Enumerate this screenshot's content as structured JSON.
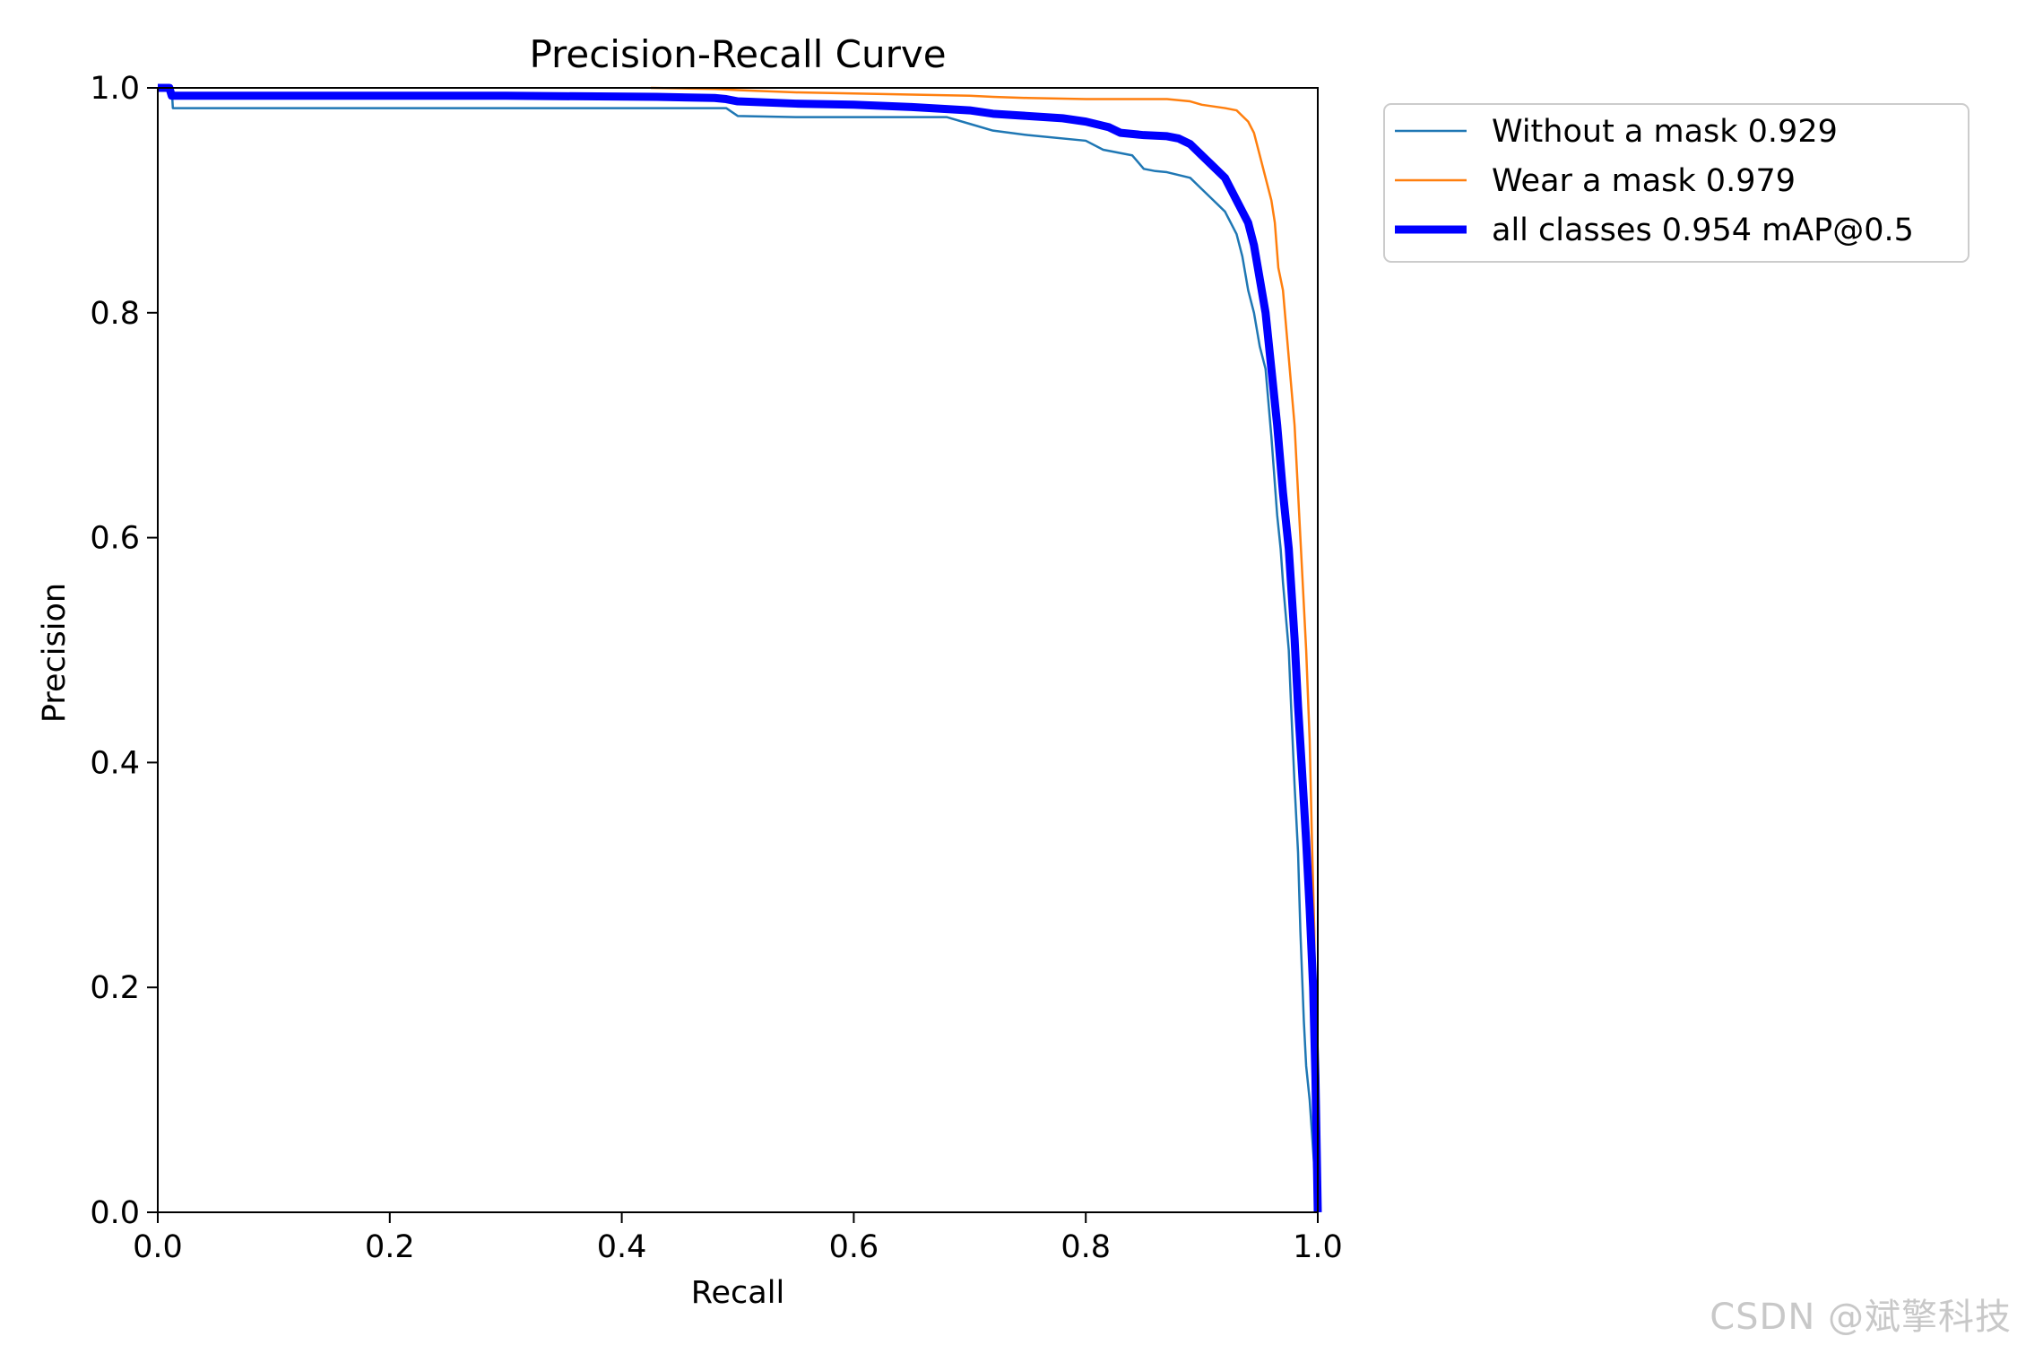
{
  "watermark": "CSDN @斌擎科技",
  "chart_data": {
    "type": "line",
    "title": "Precision-Recall Curve",
    "xlabel": "Recall",
    "ylabel": "Precision",
    "xlim": [
      0,
      1
    ],
    "ylim": [
      0,
      1
    ],
    "xticks": [
      0.0,
      0.2,
      0.4,
      0.6,
      0.8,
      1.0
    ],
    "yticks": [
      0.0,
      0.2,
      0.4,
      0.6,
      0.8,
      1.0
    ],
    "xtick_labels": [
      "0.0",
      "0.2",
      "0.4",
      "0.6",
      "0.8",
      "1.0"
    ],
    "ytick_labels": [
      "0.0",
      "0.2",
      "0.4",
      "0.6",
      "0.8",
      "1.0"
    ],
    "grid": false,
    "legend_position": "outside-top-right",
    "series": [
      {
        "name": "Without a mask 0.929",
        "color": "#1f77b4",
        "style": "thin",
        "x": [
          0.0,
          0.012,
          0.013,
          0.49,
          0.5,
          0.55,
          0.6,
          0.68,
          0.7,
          0.72,
          0.75,
          0.8,
          0.815,
          0.84,
          0.85,
          0.86,
          0.87,
          0.89,
          0.9,
          0.91,
          0.92,
          0.93,
          0.935,
          0.94,
          0.945,
          0.95,
          0.955,
          0.96,
          0.965,
          0.968,
          0.97,
          0.975,
          0.977,
          0.98,
          0.983,
          0.985,
          0.988,
          0.99,
          0.993,
          0.995,
          0.997,
          1.0
        ],
        "y": [
          1.0,
          1.0,
          0.982,
          0.982,
          0.975,
          0.974,
          0.974,
          0.974,
          0.968,
          0.962,
          0.958,
          0.953,
          0.945,
          0.94,
          0.928,
          0.926,
          0.925,
          0.92,
          0.91,
          0.9,
          0.89,
          0.87,
          0.85,
          0.82,
          0.8,
          0.77,
          0.75,
          0.69,
          0.62,
          0.59,
          0.56,
          0.5,
          0.45,
          0.38,
          0.32,
          0.25,
          0.17,
          0.13,
          0.1,
          0.07,
          0.04,
          0.0
        ]
      },
      {
        "name": "Wear a mask 0.979",
        "color": "#ff7f0e",
        "style": "thin",
        "x": [
          0.425,
          0.48,
          0.5,
          0.55,
          0.6,
          0.65,
          0.7,
          0.72,
          0.75,
          0.8,
          0.85,
          0.87,
          0.89,
          0.9,
          0.92,
          0.93,
          0.94,
          0.945,
          0.95,
          0.955,
          0.96,
          0.963,
          0.966,
          0.97,
          0.975,
          0.98,
          0.985,
          0.99,
          0.993,
          0.995,
          0.997,
          0.998,
          0.999,
          1.0
        ],
        "y": [
          1.0,
          0.999,
          0.998,
          0.996,
          0.995,
          0.994,
          0.993,
          0.992,
          0.991,
          0.99,
          0.99,
          0.99,
          0.988,
          0.985,
          0.982,
          0.98,
          0.97,
          0.96,
          0.94,
          0.92,
          0.9,
          0.88,
          0.84,
          0.82,
          0.76,
          0.7,
          0.6,
          0.5,
          0.42,
          0.33,
          0.25,
          0.15,
          0.08,
          0.0
        ]
      },
      {
        "name": "all classes 0.954 mAP@0.5",
        "color": "#0000ff",
        "style": "thick",
        "x": [
          0.0,
          0.01,
          0.012,
          0.3,
          0.43,
          0.48,
          0.49,
          0.5,
          0.55,
          0.6,
          0.65,
          0.7,
          0.72,
          0.75,
          0.78,
          0.8,
          0.82,
          0.83,
          0.85,
          0.87,
          0.88,
          0.89,
          0.9,
          0.91,
          0.92,
          0.93,
          0.94,
          0.945,
          0.95,
          0.955,
          0.96,
          0.965,
          0.97,
          0.975,
          0.98,
          0.983,
          0.986,
          0.99,
          0.993,
          0.996,
          0.998,
          1.0
        ],
        "y": [
          1.0,
          1.0,
          0.993,
          0.993,
          0.992,
          0.991,
          0.99,
          0.988,
          0.986,
          0.985,
          0.983,
          0.98,
          0.977,
          0.975,
          0.973,
          0.97,
          0.965,
          0.96,
          0.958,
          0.957,
          0.955,
          0.95,
          0.94,
          0.93,
          0.92,
          0.9,
          0.88,
          0.86,
          0.83,
          0.8,
          0.75,
          0.7,
          0.64,
          0.59,
          0.51,
          0.45,
          0.4,
          0.33,
          0.27,
          0.2,
          0.12,
          0.0
        ]
      }
    ]
  }
}
